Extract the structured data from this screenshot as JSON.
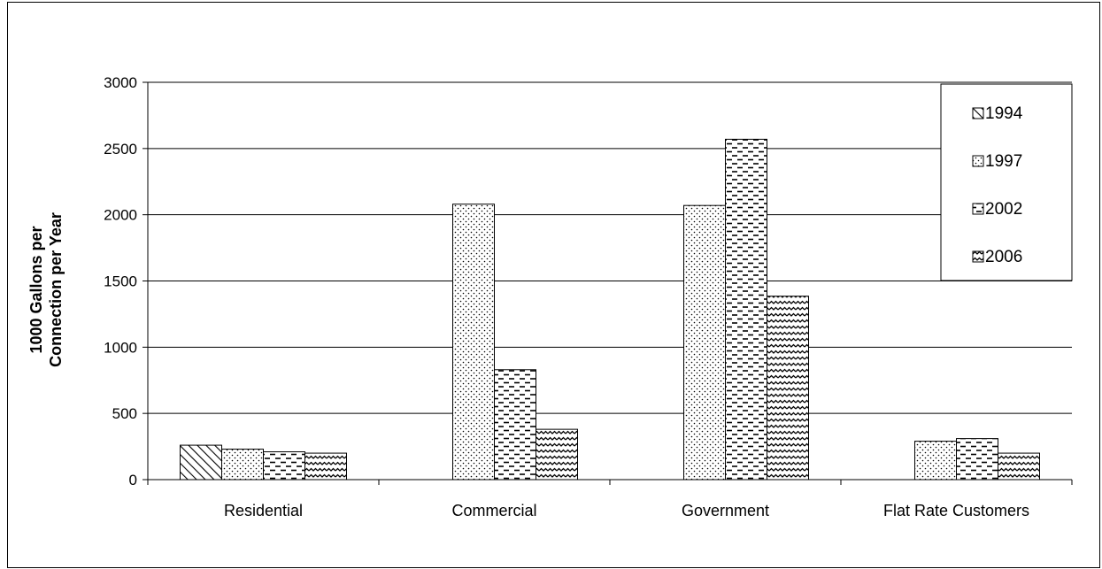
{
  "chart_data": {
    "type": "bar",
    "title": "",
    "ylabel_lines": [
      "1000 Gallons per",
      "Connection per Year"
    ],
    "xlabel": "",
    "ylim": [
      0,
      3000
    ],
    "yticks": [
      0,
      500,
      1000,
      1500,
      2000,
      2500,
      3000
    ],
    "grid": true,
    "legend_position": "top-right",
    "categories": [
      "Residential",
      "Commercial",
      "Government",
      "Flat Rate Customers"
    ],
    "series": [
      {
        "name": "1994",
        "pattern": "diagonal-hatch",
        "values": [
          260,
          0,
          0,
          0
        ]
      },
      {
        "name": "1997",
        "pattern": "dots",
        "values": [
          230,
          2080,
          2070,
          290
        ]
      },
      {
        "name": "2002",
        "pattern": "dashes",
        "values": [
          210,
          830,
          2570,
          310
        ]
      },
      {
        "name": "2006",
        "pattern": "waves",
        "values": [
          200,
          380,
          1385,
          200
        ]
      }
    ]
  }
}
